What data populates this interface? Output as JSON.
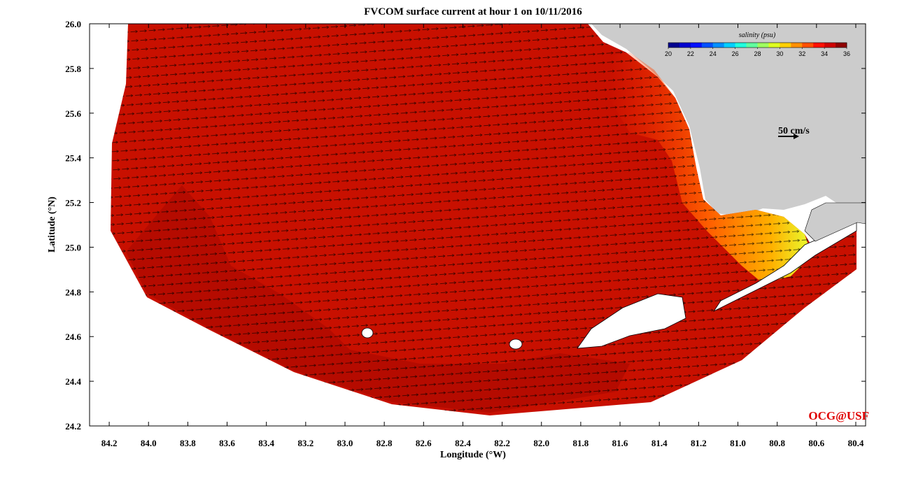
{
  "map": {
    "title": "FVCOM surface current at hour 1 on 10/11/2016",
    "x_label": "Longitude (°W)",
    "y_label": "Latitude (°N)",
    "xlim": [
      84.3,
      80.35
    ],
    "ylim": [
      24.2,
      26.0
    ],
    "xticks": [
      84.2,
      {
        "value": 84,
        "label": "84.0"
      },
      83.8,
      83.6,
      83.4,
      83.2,
      {
        "value": 83,
        "label": "83.0"
      },
      82.8,
      82.6,
      82.4,
      82.2,
      {
        "value": 82,
        "label": "82.0"
      },
      81.8,
      81.6,
      81.4,
      81.2,
      {
        "value": 81,
        "label": "81.0"
      },
      80.8,
      80.6,
      80.4
    ],
    "yticks": [
      24.2,
      24.4,
      24.6,
      24.8,
      {
        "value": 25,
        "label": "25.0"
      },
      25.2,
      25.4,
      25.6,
      25.8,
      {
        "value": 26,
        "label": "26.0"
      }
    ],
    "colorbar": {
      "title": "salinity (psu)",
      "lim": [
        20,
        36
      ],
      "ticks": [
        20,
        22,
        24,
        26,
        28,
        30,
        32,
        34,
        36
      ],
      "colors": [
        "#00008f",
        "#0000cf",
        "#0010ff",
        "#0050ff",
        "#0090ff",
        "#00d0ff",
        "#20ffdf",
        "#60ff9f",
        "#9fff60",
        "#dfff20",
        "#ffd000",
        "#ff9000",
        "#ff5000",
        "#ff1000",
        "#cf0000",
        "#8f0000"
      ]
    },
    "scale_label": "50 cm/s",
    "credit": "OCG@USF"
  }
}
